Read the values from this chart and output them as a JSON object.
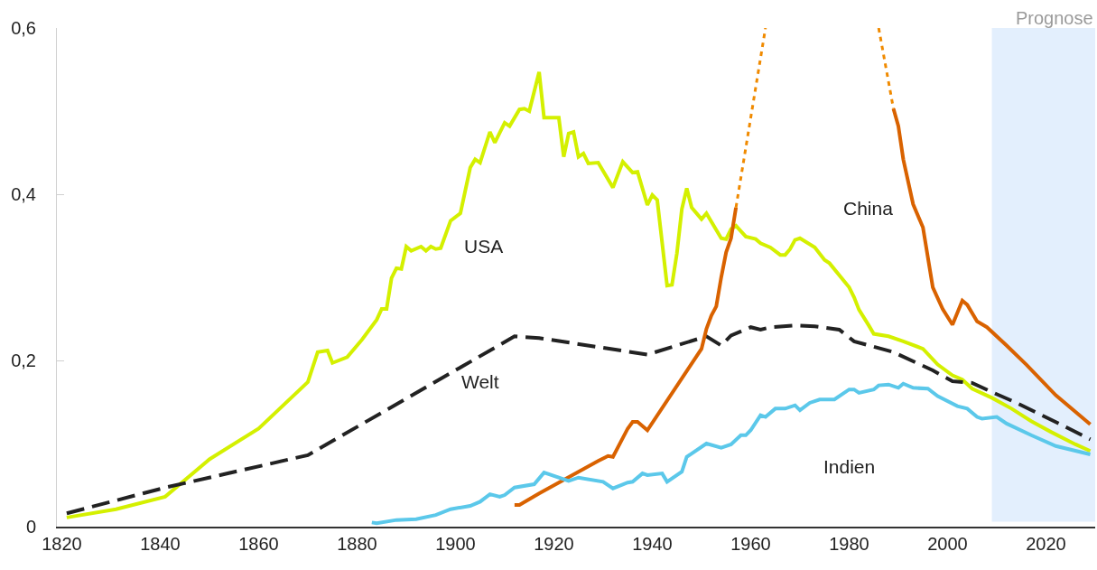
{
  "chart_data": {
    "type": "line",
    "series": [
      {
        "name": "USA",
        "color": "#d4f000",
        "line_style": "solid",
        "x": [
          1821,
          1831,
          1841,
          1850,
          1860,
          1870,
          1872,
          1874,
          1875,
          1878,
          1881,
          1884,
          1885,
          1886,
          1887,
          1888,
          1889,
          1890,
          1891,
          1893,
          1894,
          1895,
          1896,
          1897,
          1899,
          1901,
          1903,
          1904,
          1905,
          1907,
          1908,
          1910,
          1911,
          1913,
          1914,
          1915,
          1917,
          1918,
          1921,
          1922,
          1923,
          1924,
          1925,
          1926,
          1927,
          1929,
          1932,
          1934,
          1936,
          1937,
          1939,
          1940,
          1941,
          1943,
          1944,
          1945,
          1946,
          1947,
          1948,
          1950,
          1951,
          1954,
          1955,
          1956,
          1957,
          1959,
          1961,
          1962,
          1964,
          1966,
          1967,
          1968,
          1969,
          1970,
          1973,
          1975,
          1976,
          1980,
          1981,
          1982,
          1984,
          1985,
          1988,
          1991,
          1995,
          1998,
          2001,
          2003,
          2005,
          2009,
          2013,
          2017,
          2021,
          2026,
          2029
        ],
        "values": [
          0.011,
          0.021,
          0.036,
          0.081,
          0.118,
          0.174,
          0.21,
          0.212,
          0.197,
          0.204,
          0.225,
          0.249,
          0.262,
          0.262,
          0.299,
          0.311,
          0.31,
          0.337,
          0.332,
          0.337,
          0.332,
          0.337,
          0.334,
          0.335,
          0.368,
          0.377,
          0.432,
          0.442,
          0.438,
          0.475,
          0.462,
          0.486,
          0.482,
          0.502,
          0.503,
          0.5,
          0.547,
          0.492,
          0.492,
          0.445,
          0.473,
          0.475,
          0.445,
          0.449,
          0.437,
          0.438,
          0.408,
          0.439,
          0.426,
          0.427,
          0.387,
          0.399,
          0.393,
          0.29,
          0.291,
          0.329,
          0.382,
          0.407,
          0.384,
          0.37,
          0.377,
          0.347,
          0.346,
          0.358,
          0.362,
          0.349,
          0.346,
          0.341,
          0.336,
          0.327,
          0.327,
          0.334,
          0.345,
          0.347,
          0.336,
          0.321,
          0.317,
          0.288,
          0.276,
          0.261,
          0.242,
          0.232,
          0.229,
          0.223,
          0.214,
          0.195,
          0.182,
          0.177,
          0.166,
          0.155,
          0.142,
          0.127,
          0.114,
          0.099,
          0.091
        ]
      },
      {
        "name": "Welt",
        "color": "#222222",
        "line_style": "dashed",
        "x": [
          1821,
          1841,
          1870,
          1912,
          1917,
          1939,
          1951,
          1954,
          1956,
          1960,
          1962,
          1964,
          1969,
          1973,
          1978,
          1981,
          1989,
          1997,
          2001,
          2005,
          2009,
          2014,
          2023,
          2029
        ],
        "values": [
          0.016,
          0.047,
          0.086,
          0.229,
          0.227,
          0.207,
          0.229,
          0.218,
          0.23,
          0.24,
          0.237,
          0.24,
          0.242,
          0.241,
          0.237,
          0.223,
          0.21,
          0.188,
          0.175,
          0.173,
          0.162,
          0.149,
          0.123,
          0.105
        ]
      },
      {
        "name": "China",
        "color": "#d96200",
        "line_style": "solid",
        "x": [
          1912,
          1913,
          1917,
          1929,
          1931,
          1932,
          1935,
          1936,
          1937,
          1939,
          1950,
          1951,
          1952,
          1953,
          1954,
          1955,
          1956,
          1957,
          1970,
          1989,
          1990,
          1991,
          1993,
          1995,
          1997,
          1999,
          2001,
          2003,
          2004,
          2006,
          2008,
          2012,
          2016,
          2022,
          2029
        ],
        "values": [
          0.026,
          0.026,
          0.04,
          0.079,
          0.085,
          0.084,
          0.118,
          0.126,
          0.126,
          0.116,
          0.214,
          0.238,
          0.254,
          0.265,
          0.3,
          0.33,
          0.347,
          0.384,
          null,
          0.503,
          0.482,
          0.442,
          0.388,
          0.36,
          0.288,
          0.262,
          0.243,
          0.272,
          0.267,
          0.247,
          0.24,
          0.218,
          0.195,
          0.158,
          0.123
        ]
      },
      {
        "color": "#f08a00",
        "line_style": "dotted",
        "x": [
          1957,
          1963,
          1975,
          1986,
          1989
        ],
        "values": [
          0.384,
          0.6,
          null,
          0.6,
          0.503
        ]
      },
      {
        "name": "Indien",
        "color": "#5bc8ea",
        "line_style": "solid",
        "x": [
          1883,
          1884,
          1888,
          1892,
          1896,
          1899,
          1903,
          1905,
          1907,
          1909,
          1910,
          1912,
          1916,
          1918,
          1923,
          1925,
          1930,
          1932,
          1935,
          1936,
          1938,
          1939,
          1942,
          1943,
          1946,
          1947,
          1951,
          1954,
          1956,
          1958,
          1959,
          1960,
          1962,
          1963,
          1965,
          1967,
          1969,
          1970,
          1972,
          1974,
          1977,
          1980,
          1981,
          1982,
          1985,
          1986,
          1988,
          1990,
          1991,
          1993,
          1996,
          1998,
          2002,
          2004,
          2006,
          2007,
          2010,
          2012,
          2017,
          2022,
          2029
        ],
        "values": [
          0.005,
          0.004,
          0.008,
          0.009,
          0.014,
          0.021,
          0.025,
          0.03,
          0.039,
          0.036,
          0.038,
          0.047,
          0.051,
          0.065,
          0.055,
          0.059,
          0.054,
          0.046,
          0.053,
          0.054,
          0.064,
          0.062,
          0.064,
          0.054,
          0.066,
          0.084,
          0.1,
          0.095,
          0.099,
          0.11,
          0.11,
          0.116,
          0.134,
          0.132,
          0.142,
          0.142,
          0.146,
          0.14,
          0.149,
          0.153,
          0.153,
          0.165,
          0.165,
          0.161,
          0.165,
          0.17,
          0.171,
          0.167,
          0.172,
          0.167,
          0.166,
          0.157,
          0.145,
          0.142,
          0.132,
          0.13,
          0.132,
          0.124,
          0.11,
          0.097,
          0.087
        ]
      }
    ],
    "xlim": [
      1819,
      2030
    ],
    "ylim": [
      0,
      0.6
    ],
    "xticks": [
      1820,
      1840,
      1860,
      1880,
      1900,
      1920,
      1940,
      1960,
      1980,
      2000,
      2020
    ],
    "yticks": [
      0,
      {
        "value": 0.2,
        "label": "0,2"
      },
      {
        "value": 0.4,
        "label": "0,4"
      },
      {
        "value": 0.6,
        "label": "0,6"
      }
    ],
    "bands": [
      {
        "axis": "x",
        "from": 2009,
        "to": 2030,
        "label": "Prognose",
        "color": "#e3effd"
      }
    ],
    "grid": false,
    "legend": false,
    "marker": "none"
  }
}
